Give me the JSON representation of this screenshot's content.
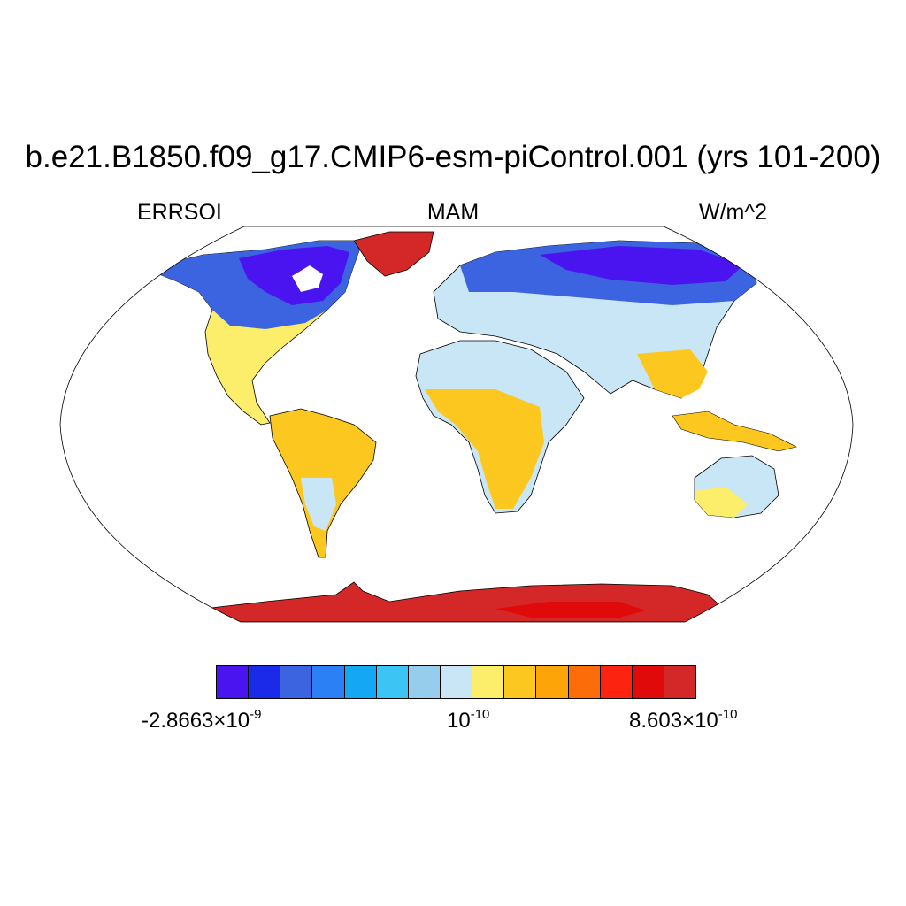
{
  "title": "b.e21.B1850.f09_g17.CMIP6-esm-piControl.001 (yrs 101-200)",
  "variable": "ERRSOI",
  "season": "MAM",
  "units": "W/m^2",
  "colorbar": {
    "colors": [
      "#4a14f0",
      "#1a2ae8",
      "#3c64e0",
      "#2a80f4",
      "#14a8f4",
      "#3cc4f4",
      "#96cdec",
      "#c8e6f6",
      "#fcee6a",
      "#fcc820",
      "#fca408",
      "#fc6c08",
      "#fc2410",
      "#e00a0a",
      "#d42828"
    ],
    "labels": [
      {
        "base": "-2.8663×10",
        "exp": "-9"
      },
      {
        "base": "10",
        "exp": "-10"
      },
      {
        "base": "8.603×10",
        "exp": "-10"
      }
    ]
  },
  "map": {
    "projection": "Robinson",
    "ocean_color": "#ffffff",
    "coastline_color": "#000000"
  }
}
